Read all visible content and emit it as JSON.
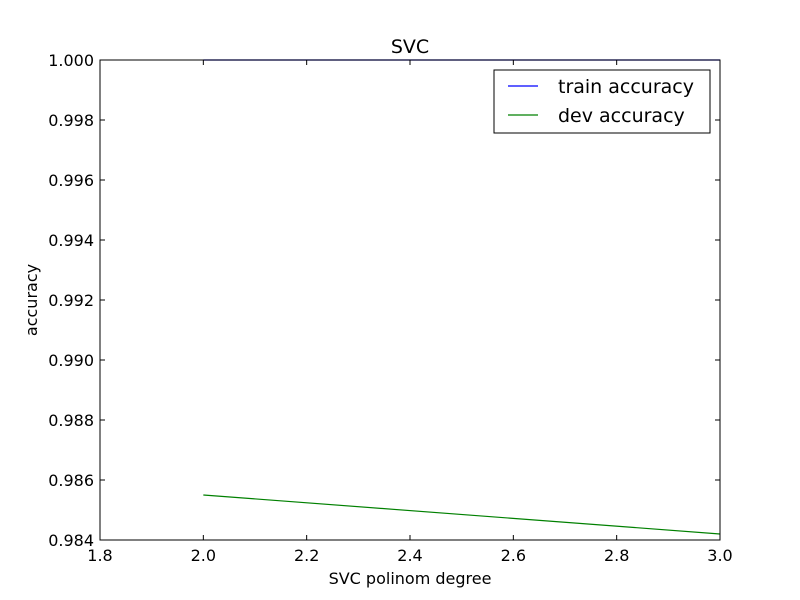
{
  "chart_data": {
    "type": "line",
    "title": "SVC",
    "xlabel": "SVC polinom degree",
    "ylabel": "accuracy",
    "xlim": [
      1.8,
      3.0
    ],
    "ylim": [
      0.984,
      1.0
    ],
    "x_ticks": [
      "1.8",
      "2.0",
      "2.2",
      "2.4",
      "2.6",
      "2.8",
      "3.0"
    ],
    "y_ticks": [
      "1.000",
      "0.998",
      "0.996",
      "0.994",
      "0.992",
      "0.990",
      "0.988",
      "0.986",
      "0.984"
    ],
    "grid": false,
    "legend_position": "top-right",
    "series": [
      {
        "name": "train accuracy",
        "color": "#0000ff",
        "x": [
          2,
          3
        ],
        "y": [
          1.0,
          1.0
        ]
      },
      {
        "name": "dev accuracy",
        "color": "#008000",
        "x": [
          2,
          3
        ],
        "y": [
          0.9855,
          0.9842
        ]
      }
    ]
  }
}
